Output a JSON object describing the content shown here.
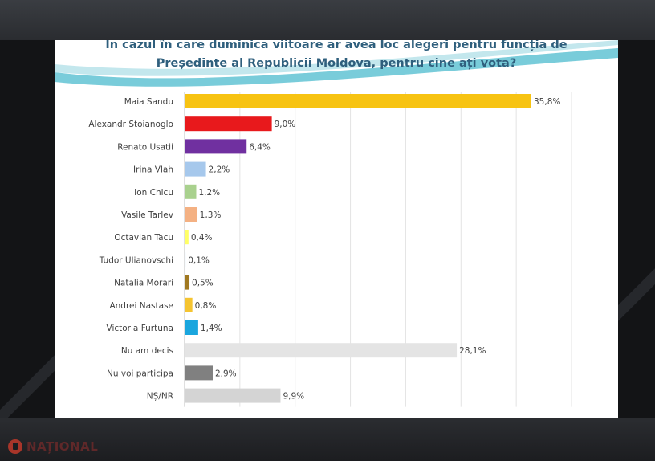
{
  "title_line1": "În cazul în care duminica viitoare ar avea loc alegeri pentru funcția de",
  "title_line2": "Președinte al Republicii Moldova, pentru cine ați vota?",
  "logo_text": "NAȚIONAL",
  "colors": {
    "accent": "#62c3d3",
    "title": "#2f5f7d",
    "grid": "#e3e3e3"
  },
  "chart_data": {
    "type": "bar",
    "orientation": "horizontal",
    "xlim": [
      0,
      35.8
    ],
    "grid": true,
    "legend": "none",
    "categories": [
      "Maia Sandu",
      "Alexandr Stoianoglo",
      "Renato Usatii",
      "Irina Vlah",
      "Ion Chicu",
      "Vasile Tarlev",
      "Octavian Tacu",
      "Tudor Ulianovschi",
      "Natalia Morari",
      "Andrei Nastase",
      "Victoria Furtuna",
      "Nu am decis",
      "Nu voi participa",
      "NȘ/NR"
    ],
    "values": [
      35.8,
      9.0,
      6.4,
      2.2,
      1.2,
      1.3,
      0.4,
      0.1,
      0.5,
      0.8,
      1.4,
      28.1,
      2.9,
      9.9
    ],
    "labels": [
      "35,8%",
      "9,0%",
      "6,4%",
      "2,2%",
      "1,2%",
      "1,3%",
      "0,4%",
      "0,1%",
      "0,5%",
      "0,8%",
      "1,4%",
      "28,1%",
      "2,9%",
      "9,9%"
    ],
    "colors": [
      "#f7c312",
      "#e8191c",
      "#7030a0",
      "#a6c8ec",
      "#a9d18e",
      "#f4b183",
      "#ffff66",
      "#ddeeff",
      "#a07820",
      "#f5c430",
      "#1aa6de",
      "#e4e4e4",
      "#808080",
      "#d4d4d4"
    ]
  }
}
